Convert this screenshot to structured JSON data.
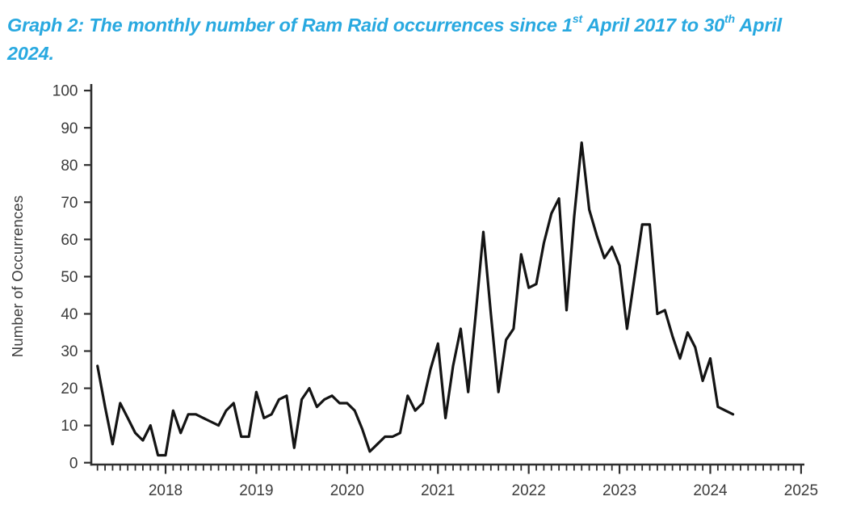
{
  "title": {
    "part1": "Graph 2: The monthly number of Ram Raid occurrences since 1",
    "sup1": "st",
    "part2": " April 2017 to 30",
    "sup2": "th",
    "part3": " April",
    "line2": "2024."
  },
  "colors": {
    "title": "#29a9e0",
    "line": "#141414",
    "axis": "#2e2e2e",
    "tick_text": "#3c3c3c"
  },
  "chart_data": {
    "type": "line",
    "title": "Graph 2: The monthly number of Ram Raid occurrences since 1st April 2017 to 30th April 2024.",
    "xlabel": "",
    "ylabel": "Number of Occurrences",
    "ylim": [
      0,
      100
    ],
    "y_ticks": [
      0,
      10,
      20,
      30,
      40,
      50,
      60,
      70,
      80,
      90,
      100
    ],
    "x_tick_labels": [
      "2018",
      "2019",
      "2020",
      "2021",
      "2022",
      "2023",
      "2024",
      "2025"
    ],
    "grid": false,
    "legend": "none",
    "x_frequency": "monthly",
    "series": [
      {
        "name": "Ram Raid occurrences per month",
        "points": [
          [
            "2017-04",
            26
          ],
          [
            "2017-05",
            15
          ],
          [
            "2017-06",
            5
          ],
          [
            "2017-07",
            16
          ],
          [
            "2017-08",
            12
          ],
          [
            "2017-09",
            8
          ],
          [
            "2017-10",
            6
          ],
          [
            "2017-11",
            10
          ],
          [
            "2017-12",
            2
          ],
          [
            "2018-01",
            2
          ],
          [
            "2018-02",
            14
          ],
          [
            "2018-03",
            8
          ],
          [
            "2018-04",
            13
          ],
          [
            "2018-05",
            13
          ],
          [
            "2018-06",
            12
          ],
          [
            "2018-07",
            11
          ],
          [
            "2018-08",
            10
          ],
          [
            "2018-09",
            14
          ],
          [
            "2018-10",
            16
          ],
          [
            "2018-11",
            7
          ],
          [
            "2018-12",
            7
          ],
          [
            "2019-01",
            19
          ],
          [
            "2019-02",
            12
          ],
          [
            "2019-03",
            13
          ],
          [
            "2019-04",
            17
          ],
          [
            "2019-05",
            18
          ],
          [
            "2019-06",
            4
          ],
          [
            "2019-07",
            17
          ],
          [
            "2019-08",
            20
          ],
          [
            "2019-09",
            15
          ],
          [
            "2019-10",
            17
          ],
          [
            "2019-11",
            18
          ],
          [
            "2019-12",
            16
          ],
          [
            "2020-01",
            16
          ],
          [
            "2020-02",
            14
          ],
          [
            "2020-03",
            9
          ],
          [
            "2020-04",
            3
          ],
          [
            "2020-05",
            5
          ],
          [
            "2020-06",
            7
          ],
          [
            "2020-07",
            7
          ],
          [
            "2020-08",
            8
          ],
          [
            "2020-09",
            18
          ],
          [
            "2020-10",
            14
          ],
          [
            "2020-11",
            16
          ],
          [
            "2020-12",
            25
          ],
          [
            "2021-01",
            32
          ],
          [
            "2021-02",
            12
          ],
          [
            "2021-03",
            26
          ],
          [
            "2021-04",
            36
          ],
          [
            "2021-05",
            19
          ],
          [
            "2021-06",
            40
          ],
          [
            "2021-07",
            62
          ],
          [
            "2021-08",
            40
          ],
          [
            "2021-09",
            19
          ],
          [
            "2021-10",
            33
          ],
          [
            "2021-11",
            36
          ],
          [
            "2021-12",
            56
          ],
          [
            "2022-01",
            47
          ],
          [
            "2022-02",
            48
          ],
          [
            "2022-03",
            59
          ],
          [
            "2022-04",
            67
          ],
          [
            "2022-05",
            71
          ],
          [
            "2022-06",
            41
          ],
          [
            "2022-07",
            66
          ],
          [
            "2022-08",
            86
          ],
          [
            "2022-09",
            68
          ],
          [
            "2022-10",
            61
          ],
          [
            "2022-11",
            55
          ],
          [
            "2022-12",
            58
          ],
          [
            "2023-01",
            53
          ],
          [
            "2023-02",
            36
          ],
          [
            "2023-03",
            50
          ],
          [
            "2023-04",
            64
          ],
          [
            "2023-05",
            64
          ],
          [
            "2023-06",
            40
          ],
          [
            "2023-07",
            41
          ],
          [
            "2023-08",
            34
          ],
          [
            "2023-09",
            28
          ],
          [
            "2023-10",
            35
          ],
          [
            "2023-11",
            31
          ],
          [
            "2023-12",
            22
          ],
          [
            "2024-01",
            28
          ],
          [
            "2024-02",
            15
          ],
          [
            "2024-03",
            14
          ],
          [
            "2024-04",
            13
          ]
        ]
      }
    ]
  }
}
